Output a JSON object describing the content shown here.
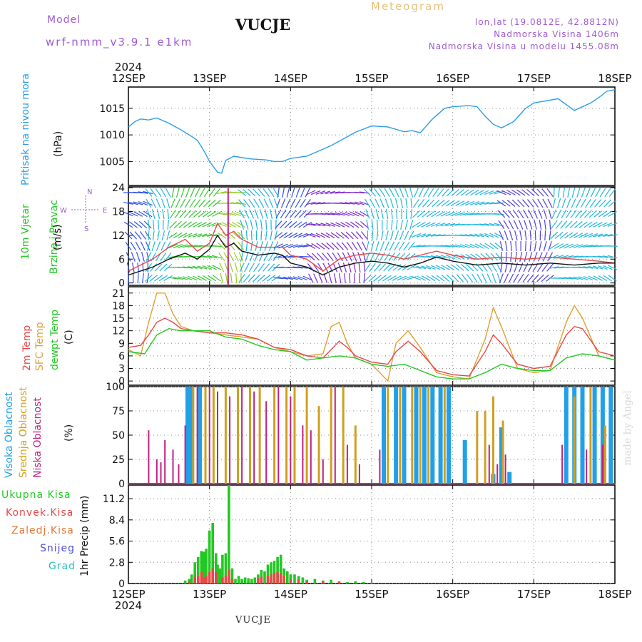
{
  "header": {
    "model_label": "Model",
    "model_name": "wrf-nmm_v3.9.1  e1km",
    "station": "VUCJE",
    "title": "Meteogram",
    "lonlat": "lon,lat (19.0812E, 42.8812N)",
    "elevation": "Nadmorska Visina 1406m",
    "model_elevation": "Nadmorska Visina u modelu 1455.08m"
  },
  "footer": {
    "station": "VUCJE"
  },
  "watermark": "made by Angel",
  "colors": {
    "pressure": "#2a9ee8",
    "temp": "#e84848",
    "sfc": "#e0a030",
    "dew": "#22c822",
    "high": "#20a0e8",
    "mid": "#d0a020",
    "low": "#c02080",
    "snow": "#5050e0",
    "grad": "#30c0c0"
  },
  "time_axis": {
    "year": "2024",
    "ticks": [
      "12SEP",
      "13SEP",
      "14SEP",
      "15SEP",
      "16SEP",
      "17SEP",
      "18SEP"
    ]
  },
  "chart_data": [
    {
      "type": "line",
      "title": "",
      "ylabel": "Pritisak na nivou mora",
      "unit": "(hPa)",
      "ylim": [
        1000.5,
        1019
      ],
      "yticks": [
        "1005",
        "1010",
        "1015"
      ],
      "series": [
        {
          "name": "Pritisak na nivou mora",
          "x": [
            0,
            0.08,
            0.15,
            0.25,
            0.35,
            0.5,
            0.62,
            0.75,
            0.85,
            0.9,
            0.95,
            1.0,
            1.05,
            1.1,
            1.15,
            1.2,
            1.3,
            1.5,
            1.7,
            1.8,
            1.9,
            2.0,
            2.2,
            2.5,
            2.8,
            3.0,
            3.2,
            3.4,
            3.5,
            3.6,
            3.75,
            3.9,
            4.0,
            4.2,
            4.3,
            4.4,
            4.5,
            4.6,
            4.75,
            4.9,
            5.0,
            5.3,
            5.5,
            5.7,
            5.8,
            5.9,
            6.0
          ],
          "values": [
            1011.5,
            1012.5,
            1013,
            1012.8,
            1013.2,
            1012.2,
            1011.2,
            1010,
            1009,
            1007.8,
            1006.5,
            1005,
            1004,
            1003,
            1002.8,
            1005.2,
            1006,
            1005.5,
            1005.3,
            1005,
            1005,
            1005.6,
            1006,
            1008,
            1010.5,
            1011.7,
            1011.5,
            1010.6,
            1010.8,
            1010.4,
            1013,
            1015,
            1015.3,
            1015.5,
            1015.3,
            1013.5,
            1012,
            1011.3,
            1012.5,
            1015,
            1016,
            1016.8,
            1014.6,
            1016,
            1017,
            1018.2,
            1018.5
          ]
        }
      ]
    },
    {
      "type": "line",
      "title": "",
      "ylabel": "10m Vjetar Brzina i Pravac",
      "unit": "(m/s)",
      "ylim": [
        -0.6,
        24.2
      ],
      "yticks": [
        "0",
        "6",
        "12",
        "18",
        "24"
      ],
      "compass": [
        "N",
        "E",
        "S",
        "W"
      ],
      "series": [
        {
          "name": "wind speed",
          "x": [
            0,
            0.3,
            0.5,
            0.7,
            0.85,
            1.0,
            1.1,
            1.2,
            1.3,
            1.4,
            1.6,
            1.8,
            1.9,
            2.0,
            2.2,
            2.4,
            2.6,
            2.8,
            3.0,
            3.2,
            3.4,
            3.6,
            3.8,
            4.0,
            4.3,
            4.6,
            4.9,
            5.2,
            5.5,
            5.8,
            6.0
          ],
          "values": [
            2,
            4,
            6,
            7.5,
            6,
            8.5,
            12,
            9,
            10,
            8,
            7,
            7.5,
            7,
            5,
            4,
            2,
            4,
            5,
            5.5,
            5,
            4,
            5,
            6.5,
            5.5,
            4.5,
            5,
            4.5,
            5,
            4.5,
            5,
            5
          ]
        },
        {
          "name": "wind gust",
          "x": [
            0,
            0.3,
            0.5,
            0.7,
            0.85,
            1.0,
            1.1,
            1.2,
            1.3,
            1.4,
            1.6,
            1.8,
            1.9,
            2.0,
            2.2,
            2.4,
            2.6,
            2.8,
            3.0,
            3.2,
            3.4,
            3.6,
            3.8,
            4.0,
            4.3,
            4.6,
            4.9,
            5.2,
            5.5,
            5.8,
            6.0
          ],
          "values": [
            3,
            6,
            9,
            11,
            8,
            10,
            15,
            12,
            13,
            11,
            9,
            9,
            9,
            7,
            6,
            3,
            6,
            7,
            7.5,
            7,
            6,
            7,
            8,
            7,
            6,
            6.5,
            6,
            6.5,
            6,
            5.5,
            5
          ]
        }
      ]
    },
    {
      "type": "line",
      "title": "",
      "ylabel": "2m Temp / SFC Temp / dewpt Temp",
      "unit": "(C)",
      "ylim": [
        -1,
        22.5
      ],
      "yticks": [
        "0",
        "3",
        "6",
        "9",
        "12",
        "15",
        "18",
        "21"
      ],
      "series": [
        {
          "name": "2m Temp",
          "x": [
            0,
            0.15,
            0.25,
            0.35,
            0.45,
            0.55,
            0.65,
            0.8,
            1.0,
            1.2,
            1.4,
            1.6,
            1.8,
            2.0,
            2.2,
            2.4,
            2.5,
            2.6,
            2.7,
            2.8,
            3.0,
            3.2,
            3.3,
            3.45,
            3.6,
            3.8,
            4.0,
            4.2,
            4.4,
            4.5,
            4.6,
            4.8,
            5.0,
            5.2,
            5.4,
            5.5,
            5.6,
            5.8,
            6.0
          ],
          "values": [
            8,
            8.5,
            11,
            14,
            15,
            14,
            12.5,
            12,
            11.5,
            11.5,
            11,
            10,
            8,
            7.5,
            6,
            5.5,
            7.5,
            9.5,
            8,
            6,
            4.5,
            4,
            7,
            9.5,
            7,
            2.5,
            1.5,
            1.2,
            7,
            11,
            9,
            4,
            3,
            3.5,
            11,
            13,
            12.5,
            7,
            6
          ]
        },
        {
          "name": "SFC Temp",
          "x": [
            0,
            0.15,
            0.25,
            0.35,
            0.45,
            0.55,
            0.65,
            0.8,
            1.0,
            1.2,
            1.4,
            1.6,
            1.8,
            2.0,
            2.2,
            2.4,
            2.5,
            2.6,
            2.7,
            2.8,
            3.0,
            3.2,
            3.3,
            3.45,
            3.6,
            3.8,
            4.0,
            4.2,
            4.4,
            4.5,
            4.6,
            4.8,
            5.0,
            5.2,
            5.4,
            5.5,
            5.6,
            5.8,
            6.0
          ],
          "values": [
            7.5,
            6,
            14,
            21,
            21,
            16,
            13,
            12,
            11.5,
            11,
            10.5,
            10,
            8,
            7,
            6,
            6.5,
            13,
            14,
            9,
            5.5,
            4,
            0,
            9,
            12,
            8,
            2,
            1,
            0.5,
            10,
            17.5,
            13,
            3,
            2,
            2.5,
            14,
            18,
            15,
            6,
            5
          ]
        },
        {
          "name": "dewpt Temp",
          "x": [
            0,
            0.2,
            0.35,
            0.5,
            0.65,
            0.8,
            1.0,
            1.2,
            1.4,
            1.6,
            1.8,
            2.0,
            2.2,
            2.4,
            2.6,
            2.8,
            3.0,
            3.2,
            3.4,
            3.6,
            3.8,
            4.0,
            4.2,
            4.4,
            4.6,
            4.8,
            5.0,
            5.2,
            5.4,
            5.6,
            5.8,
            6.0
          ],
          "values": [
            7,
            6.5,
            11,
            12.5,
            12,
            12,
            12,
            10.5,
            10,
            8.5,
            7.5,
            7,
            5,
            5.5,
            6,
            5.5,
            4,
            3.5,
            4,
            2.5,
            1,
            0.5,
            0.5,
            2,
            4,
            3,
            2.5,
            2.5,
            5.5,
            6.5,
            6,
            5
          ]
        }
      ]
    },
    {
      "type": "bar",
      "title": "",
      "ylabel": "Visoka Oblacnost / Srednja Oblacnost / Niska Oblacnost",
      "unit": "(%)",
      "ylim": [
        0,
        100
      ],
      "yticks": [
        "0",
        "25",
        "50",
        "75",
        "100"
      ],
      "series": [
        {
          "name": "Visoka Oblacnost",
          "bars": [
            [
              0.73,
              100
            ],
            [
              0.77,
              100
            ],
            [
              0.88,
              100
            ],
            [
              3.15,
              100
            ],
            [
              3.3,
              100
            ],
            [
              3.4,
              100
            ],
            [
              3.55,
              100
            ],
            [
              3.65,
              100
            ],
            [
              3.75,
              100
            ],
            [
              3.85,
              100
            ],
            [
              3.95,
              100
            ],
            [
              4.15,
              45
            ],
            [
              4.5,
              10
            ],
            [
              4.6,
              58
            ],
            [
              4.7,
              12
            ],
            [
              5.4,
              100
            ],
            [
              5.5,
              100
            ],
            [
              5.6,
              100
            ],
            [
              5.75,
              100
            ],
            [
              5.85,
              100
            ],
            [
              5.95,
              100
            ]
          ]
        },
        {
          "name": "Srednja Oblacnost",
          "bars": [
            [
              0.8,
              100
            ],
            [
              0.95,
              100
            ],
            [
              1.05,
              100
            ],
            [
              1.2,
              100
            ],
            [
              1.35,
              100
            ],
            [
              1.5,
              100
            ],
            [
              1.62,
              100
            ],
            [
              1.8,
              100
            ],
            [
              1.95,
              100
            ],
            [
              2.05,
              100
            ],
            [
              2.2,
              100
            ],
            [
              2.35,
              80
            ],
            [
              2.5,
              100
            ],
            [
              2.65,
              100
            ],
            [
              2.8,
              60
            ],
            [
              3.2,
              100
            ],
            [
              3.35,
              100
            ],
            [
              3.5,
              100
            ],
            [
              3.6,
              100
            ],
            [
              3.7,
              100
            ],
            [
              3.9,
              100
            ],
            [
              4.3,
              75
            ],
            [
              4.4,
              75
            ],
            [
              4.5,
              90
            ],
            [
              4.62,
              65
            ],
            [
              5.5,
              90
            ],
            [
              5.7,
              100
            ],
            [
              5.88,
              60
            ]
          ]
        },
        {
          "name": "Niska Oblacnost",
          "bars": [
            [
              0.25,
              55
            ],
            [
              0.35,
              25
            ],
            [
              0.4,
              22
            ],
            [
              0.45,
              45
            ],
            [
              0.55,
              35
            ],
            [
              0.62,
              20
            ],
            [
              0.7,
              60
            ],
            [
              0.85,
              100
            ],
            [
              1.0,
              100
            ],
            [
              1.1,
              95
            ],
            [
              1.25,
              90
            ],
            [
              1.4,
              100
            ],
            [
              1.55,
              95
            ],
            [
              1.7,
              85
            ],
            [
              1.85,
              100
            ],
            [
              2.0,
              90
            ],
            [
              2.15,
              60
            ],
            [
              2.25,
              55
            ],
            [
              2.4,
              25
            ],
            [
              2.55,
              100
            ],
            [
              2.7,
              40
            ],
            [
              2.85,
              20
            ],
            [
              3.1,
              35
            ],
            [
              4.45,
              40
            ],
            [
              4.55,
              20
            ],
            [
              4.65,
              30
            ],
            [
              5.35,
              40
            ],
            [
              5.65,
              35
            ],
            [
              5.85,
              40
            ]
          ]
        }
      ]
    },
    {
      "type": "bar",
      "title": "",
      "ylabel": "1hr Precip (mm)",
      "unit": "(mm)",
      "ylim": [
        0,
        13
      ],
      "yticks": [
        "0",
        "2.8",
        "5.6",
        "8.4",
        "11.2"
      ],
      "legend": [
        "Ukupna Kisa",
        "Konvek.Kisa",
        "Zaledj.Kisa",
        "Snijeg",
        "Grad"
      ],
      "series": [
        {
          "name": "Ukupna Kisa",
          "x": [
            0.7,
            0.75,
            0.78,
            0.82,
            0.86,
            0.9,
            0.93,
            0.96,
            1.0,
            1.04,
            1.08,
            1.1,
            1.13,
            1.16,
            1.2,
            1.24,
            1.28,
            1.32,
            1.36,
            1.4,
            1.44,
            1.48,
            1.52,
            1.56,
            1.6,
            1.64,
            1.68,
            1.72,
            1.76,
            1.8,
            1.84,
            1.88,
            1.92,
            1.96,
            2.0,
            2.05,
            2.1,
            2.15,
            2.2,
            2.3,
            2.4,
            2.5,
            2.6,
            2.7,
            2.8,
            2.9,
            3.0
          ],
          "values": [
            0.4,
            0.6,
            1.2,
            2.8,
            3.5,
            4.3,
            4.2,
            4.6,
            7,
            8,
            4,
            2.5,
            2,
            3.8,
            4,
            13,
            2,
            0.6,
            1,
            0.6,
            0.8,
            0.7,
            0.6,
            0.8,
            1.2,
            1.8,
            1.6,
            2.5,
            2.8,
            3,
            3.5,
            3.8,
            2,
            1.6,
            1.2,
            1.2,
            1,
            0.8,
            0.5,
            0.6,
            0.4,
            0.5,
            0.3,
            0.2,
            0.3,
            0.2,
            0.1
          ]
        },
        {
          "name": "Konvek.Kisa",
          "x": [
            0.75,
            0.82,
            0.86,
            0.9,
            0.93,
            0.96,
            1.0,
            1.04,
            1.08,
            1.16,
            1.2,
            1.24,
            1.28,
            1.6,
            1.64,
            1.72,
            1.76,
            1.8,
            1.84,
            1.88,
            1.92,
            2.0,
            2.1,
            2.2,
            2.4,
            2.6
          ],
          "values": [
            0.3,
            0.9,
            1,
            1.5,
            0.8,
            1,
            1.5,
            2,
            1.5,
            0.8,
            1,
            1.8,
            0.6,
            0.7,
            0.9,
            1,
            1.2,
            1.4,
            1.5,
            1.4,
            1,
            0.6,
            0.5,
            0.3,
            0.3,
            0.2
          ]
        }
      ]
    }
  ]
}
